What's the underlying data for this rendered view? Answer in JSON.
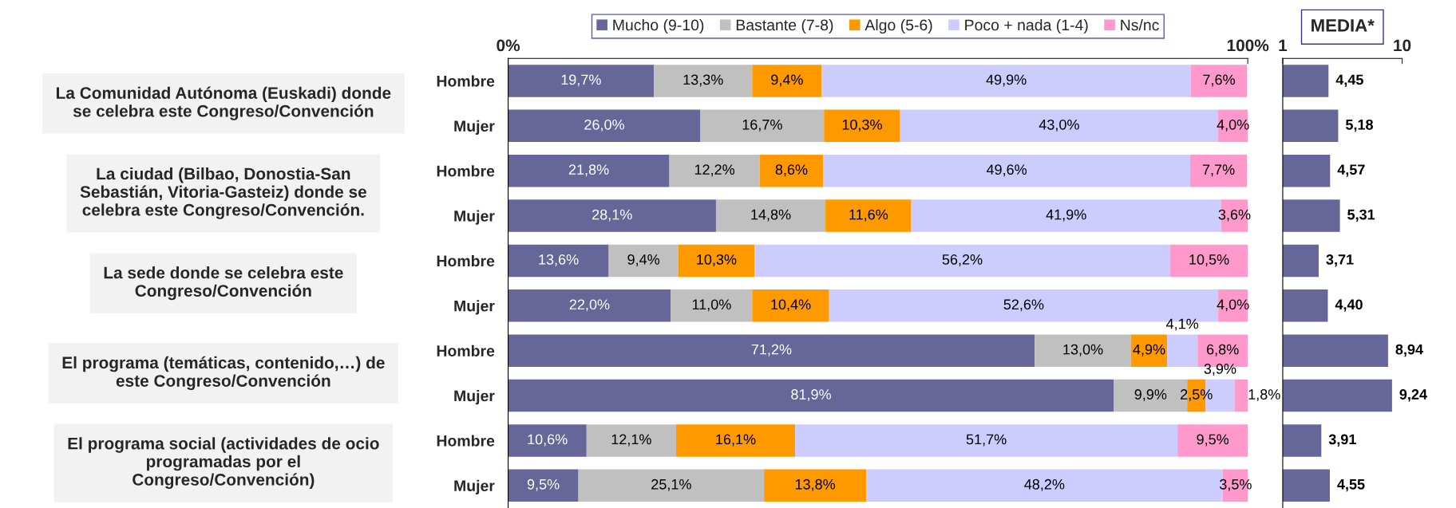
{
  "chart_data": [
    {
      "type": "bar",
      "orientation": "horizontal",
      "stacked": true,
      "legend": "top",
      "grid": false,
      "categories": [
        "Hombre",
        "Mujer",
        "Hombre",
        "Mujer",
        "Hombre",
        "Mujer",
        "Hombre",
        "Mujer",
        "Hombre",
        "Mujer"
      ],
      "xlim": [
        0,
        100
      ],
      "xticks": [
        {
          "value": 0,
          "label": "0%"
        },
        {
          "value": 100,
          "label": "100%"
        }
      ],
      "annotations": [
        "La Comunidad Autónoma (Euskadi) donde se celebra este Congreso/Convención",
        "La ciudad (Bilbao, Donostia-San Sebastián, Vitoria-Gasteiz) donde se celebra este Congreso/Convención.",
        "La sede donde se celebra este Congreso/Convención",
        "El programa (temáticas, contenido,…) de este Congreso/Convención",
        "El programa social (actividades de ocio programadas por el Congreso/Convención)"
      ],
      "series": [
        {
          "name": "Mucho (9-10)",
          "color": "#666699",
          "values": [
            19.7,
            26.0,
            21.8,
            28.1,
            13.6,
            22.0,
            71.2,
            81.9,
            10.6,
            9.5
          ],
          "value_labels": [
            "19,7%",
            "26,0%",
            "21,8%",
            "28,1%",
            "13,6%",
            "22,0%",
            "71,2%",
            "81,9%",
            "10,6%",
            "9,5%"
          ]
        },
        {
          "name": "Bastante (7-8)",
          "color": "#c0c0c0",
          "values": [
            13.3,
            16.7,
            12.2,
            14.8,
            9.4,
            11.0,
            13.0,
            9.9,
            12.1,
            25.1
          ],
          "value_labels": [
            "13,3%",
            "16,7%",
            "12,2%",
            "14,8%",
            "9,4%",
            "11,0%",
            "13,0%",
            "9,9%",
            "12,1%",
            "25,1%"
          ]
        },
        {
          "name": "Algo (5-6)",
          "color": "#ff9900",
          "values": [
            9.4,
            10.3,
            8.6,
            11.6,
            10.3,
            10.4,
            4.9,
            2.5,
            16.1,
            13.8
          ],
          "value_labels": [
            "9,4%",
            "10,3%",
            "8,6%",
            "11,6%",
            "10,3%",
            "10,4%",
            "4,9%",
            "2,5%",
            "16,1%",
            "13,8%"
          ]
        },
        {
          "name": "Poco + nada (1-4)",
          "color": "#ccccff",
          "values": [
            49.9,
            43.0,
            49.6,
            41.9,
            56.2,
            52.6,
            4.1,
            3.9,
            51.7,
            48.2
          ],
          "value_labels": [
            "49,9%",
            "43,0%",
            "49,6%",
            "41,9%",
            "56,2%",
            "52,6%",
            "4,1%",
            "3,9%",
            "51,7%",
            "48,2%"
          ]
        },
        {
          "name": "Ns/nc",
          "color": "#ff99cc",
          "values": [
            7.6,
            4.0,
            7.7,
            3.6,
            10.5,
            4.0,
            6.8,
            1.8,
            9.5,
            3.5
          ],
          "value_labels": [
            "7,6%",
            "4,0%",
            "7,7%",
            "3,6%",
            "10,5%",
            "4,0%",
            "6,8%",
            "1,8%",
            "9,5%",
            "3,5%"
          ]
        }
      ]
    },
    {
      "type": "bar",
      "orientation": "horizontal",
      "title": "MEDIA*",
      "tick_labels": "x",
      "grid": false,
      "categories": [
        null,
        null,
        null,
        null,
        null,
        null,
        null,
        null,
        null,
        null
      ],
      "xlim": [
        1,
        10
      ],
      "xticks": [
        1,
        10
      ],
      "series": [
        {
          "color": "#666699",
          "values": [
            4.45,
            5.18,
            4.57,
            5.31,
            3.71,
            4.4,
            8.94,
            9.24,
            3.91,
            4.55
          ],
          "value_labels": [
            "4,45",
            "5,18",
            "4,57",
            "5,31",
            "3,71",
            "4,40",
            "8,94",
            "9,24",
            "3,91",
            "4,55"
          ]
        }
      ]
    }
  ]
}
